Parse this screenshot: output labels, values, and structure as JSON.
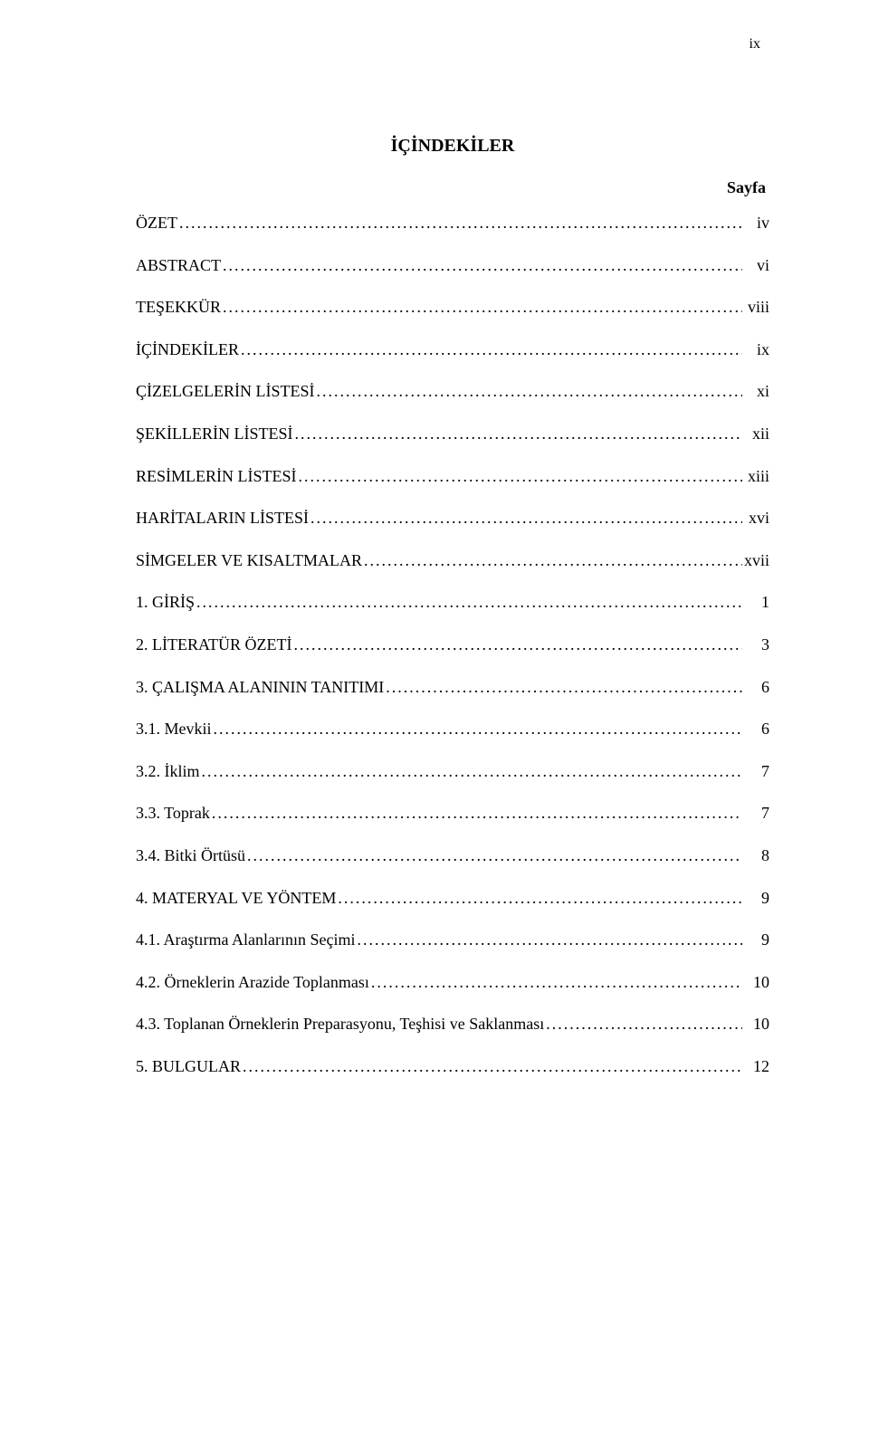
{
  "pageNumberTop": "ix",
  "title": "İÇİNDEKİLER",
  "pageColumnHeader": "Sayfa",
  "entries": [
    {
      "label": "ÖZET",
      "page": "iv"
    },
    {
      "label": "ABSTRACT",
      "page": "vi"
    },
    {
      "label": "TEŞEKKÜR",
      "page": "viii"
    },
    {
      "label": "İÇİNDEKİLER",
      "page": "ix"
    },
    {
      "label": "ÇİZELGELERİN LİSTESİ",
      "page": "xi"
    },
    {
      "label": "ŞEKİLLERİN LİSTESİ",
      "page": "xii"
    },
    {
      "label": "RESİMLERİN LİSTESİ",
      "page": "xiii"
    },
    {
      "label": "HARİTALARIN LİSTESİ",
      "page": "xvi"
    },
    {
      "label": "SİMGELER VE KISALTMALAR",
      "page": "xvii"
    },
    {
      "label": "1. GİRİŞ",
      "page": "1"
    },
    {
      "label": "2. LİTERATÜR ÖZETİ",
      "page": "3"
    },
    {
      "label": "3. ÇALIŞMA ALANININ TANITIMI",
      "page": "6"
    },
    {
      "label": "3.1. Mevkii",
      "page": "6"
    },
    {
      "label": "3.2. İklim",
      "page": "7"
    },
    {
      "label": "3.3. Toprak",
      "page": "7"
    },
    {
      "label": "3.4. Bitki Örtüsü",
      "page": "8"
    },
    {
      "label": "4. MATERYAL VE YÖNTEM",
      "page": "9"
    },
    {
      "label": "4.1. Araştırma Alanlarının Seçimi",
      "page": "9"
    },
    {
      "label": "4.2. Örneklerin Arazide Toplanması",
      "page": "10"
    },
    {
      "label": "4.3. Toplanan Örneklerin Preparasyonu, Teşhisi ve Saklanması",
      "page": "10"
    },
    {
      "label": "5. BULGULAR",
      "page": "12"
    }
  ],
  "colors": {
    "background": "#ffffff",
    "text": "#000000"
  },
  "typography": {
    "fontFamily": "Times New Roman",
    "titleFontSize": 20,
    "bodyFontSize": 18,
    "titleWeight": "bold",
    "sayfaWeight": "bold"
  }
}
